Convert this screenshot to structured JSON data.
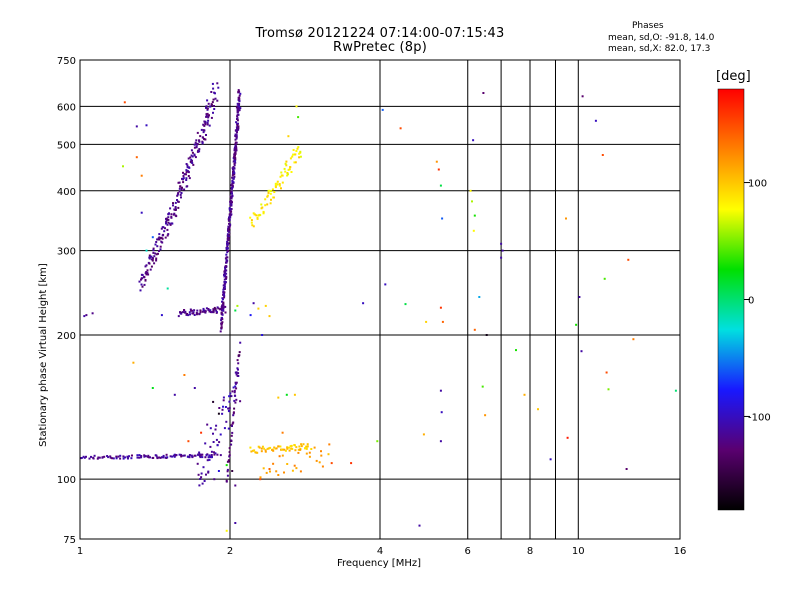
{
  "chart_data": {
    "type": "scatter",
    "title": "Tromsø 20121224 07:14:00-07:15:43",
    "subtitle": "RwPretec (8p)",
    "xlabel": "Frequency [MHz]",
    "ylabel": "Stationary phase Virtual Height [km]",
    "x_scale": "log",
    "y_scale": "log",
    "xlim": [
      1,
      16
    ],
    "ylim": [
      75,
      750
    ],
    "x_ticks": [
      1,
      2,
      4,
      6,
      8,
      10,
      16
    ],
    "x_minor_ticks": [
      7,
      9
    ],
    "y_ticks": [
      75,
      100,
      200,
      300,
      400,
      500,
      600,
      750
    ],
    "grid": true,
    "stats_header": "Phases",
    "stats": [
      "mean, sd,O: -91.8, 14.0",
      "mean, sd,X:  82.0, 17.3"
    ],
    "colorbar": {
      "unit": "[deg]",
      "range": [
        -180,
        180
      ],
      "ticks": [
        100,
        0,
        -100
      ],
      "colors": [
        "#000000",
        "#5a0070",
        "#1818ff",
        "#00e0e0",
        "#00e000",
        "#ffff00",
        "#ff8000",
        "#ff0000"
      ]
    },
    "series": [
      {
        "traces": [
          {
            "x0": 1.0,
            "x1": 1.92,
            "y0": 111,
            "y1": 112,
            "n": 110,
            "jitter": 0.008,
            "phase": -115
          },
          {
            "x0": 1.32,
            "x1": 1.9,
            "y0": 252,
            "y1": 640,
            "n": 240,
            "jitter": 0.05,
            "phase": -120
          },
          {
            "x0": 1.92,
            "x1": 2.1,
            "y0": 210,
            "y1": 640,
            "n": 360,
            "jitter": 0.04,
            "phase": -118
          },
          {
            "x0": 1.58,
            "x1": 1.97,
            "y0": 222,
            "y1": 226,
            "n": 70,
            "jitter": 0.015,
            "phase": -120
          },
          {
            "x0": 1.72,
            "x1": 2.1,
            "y0": 102,
            "y1": 160,
            "n": 60,
            "jitter": 0.1,
            "phase": -110
          },
          {
            "x0": 1.97,
            "x1": 2.1,
            "y0": 99,
            "y1": 190,
            "n": 45,
            "jitter": 0.02,
            "phase": -125
          },
          {
            "x0": 2.2,
            "x1": 2.8,
            "y0": 340,
            "y1": 490,
            "n": 80,
            "jitter": 0.04,
            "phase": 85
          },
          {
            "x0": 2.2,
            "x1": 2.95,
            "y0": 115,
            "y1": 117,
            "n": 60,
            "jitter": 0.015,
            "phase": 100
          },
          {
            "x0": 2.3,
            "x1": 3.2,
            "y0": 105,
            "y1": 113,
            "n": 25,
            "jitter": 0.06,
            "phase": 115
          }
        ],
        "points": [
          [
            1.03,
            220,
            -120
          ],
          [
            1.06,
            222,
            -120
          ],
          [
            1.02,
            219,
            -110
          ],
          [
            1.23,
            612,
            150
          ],
          [
            1.22,
            450,
            60
          ],
          [
            1.3,
            470,
            140
          ],
          [
            1.3,
            545,
            -110
          ],
          [
            1.36,
            548,
            -100
          ],
          [
            1.28,
            175,
            110
          ],
          [
            1.4,
            155,
            20
          ],
          [
            1.33,
            430,
            130
          ],
          [
            1.4,
            320,
            -60
          ],
          [
            1.33,
            360,
            -100
          ],
          [
            1.36,
            300,
            -20
          ],
          [
            1.5,
            250,
            -10
          ],
          [
            1.46,
            220,
            -95
          ],
          [
            1.55,
            150,
            -110
          ],
          [
            1.62,
            165,
            130
          ],
          [
            1.7,
            155,
            -110
          ],
          [
            1.65,
            120,
            150
          ],
          [
            1.75,
            125,
            160
          ],
          [
            1.8,
            130,
            -120
          ],
          [
            1.85,
            145,
            -160
          ],
          [
            1.9,
            137,
            -170
          ],
          [
            1.86,
            100,
            -120
          ],
          [
            1.9,
            104,
            -90
          ],
          [
            1.97,
            107,
            30
          ],
          [
            2.02,
            104,
            -150
          ],
          [
            2.05,
            97,
            -120
          ],
          [
            1.97,
            78,
            80
          ],
          [
            2.05,
            81,
            -110
          ],
          [
            2.07,
            230,
            60
          ],
          [
            2.05,
            225,
            10
          ],
          [
            2.2,
            220,
            -80
          ],
          [
            2.23,
            233,
            -110
          ],
          [
            2.32,
            200,
            -90
          ],
          [
            2.28,
            227,
            95
          ],
          [
            2.4,
            219,
            100
          ],
          [
            2.36,
            230,
            95
          ],
          [
            2.62,
            520,
            95
          ],
          [
            2.74,
            570,
            40
          ],
          [
            2.72,
            600,
            80
          ],
          [
            2.6,
            150,
            20
          ],
          [
            2.5,
            148,
            100
          ],
          [
            2.7,
            150,
            100
          ],
          [
            2.55,
            125,
            130
          ],
          [
            2.3,
            100,
            150
          ],
          [
            2.4,
            105,
            140
          ],
          [
            2.5,
            102,
            120
          ],
          [
            3.05,
            112,
            120
          ],
          [
            3.2,
            108,
            150
          ],
          [
            3.5,
            108,
            160
          ],
          [
            3.7,
            233,
            -100
          ],
          [
            3.95,
            120,
            50
          ],
          [
            4.05,
            590,
            -60
          ],
          [
            4.1,
            255,
            -100
          ],
          [
            4.4,
            540,
            150
          ],
          [
            4.5,
            232,
            10
          ],
          [
            4.95,
            213,
            95
          ],
          [
            4.9,
            124,
            110
          ],
          [
            5.2,
            460,
            120
          ],
          [
            5.25,
            443,
            160
          ],
          [
            5.3,
            410,
            10
          ],
          [
            5.33,
            350,
            -60
          ],
          [
            5.3,
            228,
            160
          ],
          [
            5.35,
            213,
            140
          ],
          [
            5.3,
            153,
            -110
          ],
          [
            5.32,
            138,
            -100
          ],
          [
            5.3,
            120,
            -110
          ],
          [
            4.8,
            80,
            -110
          ],
          [
            6.15,
            510,
            -100
          ],
          [
            6.08,
            400,
            80
          ],
          [
            6.12,
            380,
            60
          ],
          [
            6.2,
            355,
            30
          ],
          [
            6.17,
            330,
            80
          ],
          [
            6.33,
            240,
            -40
          ],
          [
            6.2,
            205,
            140
          ],
          [
            6.55,
            200,
            -170
          ],
          [
            6.43,
            156,
            40
          ],
          [
            6.5,
            136,
            120
          ],
          [
            6.45,
            640,
            -130
          ],
          [
            7.0,
            310,
            -110
          ],
          [
            7.0,
            290,
            -110
          ],
          [
            7.05,
            300,
            -110
          ],
          [
            7.5,
            186,
            30
          ],
          [
            7.8,
            150,
            110
          ],
          [
            8.3,
            140,
            100
          ],
          [
            8.8,
            110,
            -100
          ],
          [
            9.45,
            350,
            120
          ],
          [
            9.52,
            122,
            170
          ],
          [
            9.9,
            210,
            30
          ],
          [
            10.05,
            240,
            -110
          ],
          [
            10.15,
            185,
            -110
          ],
          [
            10.2,
            630,
            -130
          ],
          [
            10.85,
            560,
            -100
          ],
          [
            11.2,
            475,
            150
          ],
          [
            11.3,
            262,
            40
          ],
          [
            11.4,
            167,
            150
          ],
          [
            11.5,
            154,
            50
          ],
          [
            12.5,
            105,
            -130
          ],
          [
            12.6,
            287,
            150
          ],
          [
            12.9,
            196,
            130
          ],
          [
            15.7,
            153,
            0
          ]
        ]
      }
    ]
  }
}
